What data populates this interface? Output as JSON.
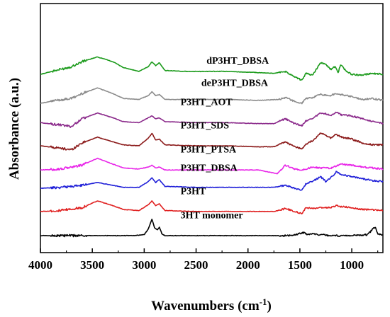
{
  "chart_data": {
    "type": "line",
    "title": "",
    "xlabel": "Wavenumbers (cm",
    "xlabel_sup": "-1",
    "xlabel_close": ")",
    "ylabel": "Absorbance (a.u.)",
    "xlim": [
      4000,
      700
    ],
    "x_reversed": true,
    "y_ticks_shown": false,
    "grid": false,
    "legend": "none",
    "x_ticks": [
      4000,
      3500,
      3000,
      2500,
      2000,
      1500,
      1000
    ],
    "x_tick_labels": [
      "4000",
      "3500",
      "3000",
      "2500",
      "2000",
      "1500",
      "1000"
    ],
    "series": [
      {
        "name": "dP3HT_DBSA",
        "color": "#1a9a1a",
        "offset": 8.0,
        "label_x": 2400,
        "points": [
          [
            4000,
            0.35
          ],
          [
            3850,
            0.55
          ],
          [
            3700,
            0.75
          ],
          [
            3600,
            1.0
          ],
          [
            3450,
            1.25
          ],
          [
            3300,
            1.0
          ],
          [
            3200,
            0.7
          ],
          [
            3050,
            0.5
          ],
          [
            2960,
            0.75
          ],
          [
            2925,
            1.0
          ],
          [
            2890,
            0.8
          ],
          [
            2855,
            0.95
          ],
          [
            2800,
            0.55
          ],
          [
            2600,
            0.5
          ],
          [
            2200,
            0.5
          ],
          [
            1950,
            0.45
          ],
          [
            1750,
            0.4
          ],
          [
            1640,
            0.5
          ],
          [
            1550,
            0.2
          ],
          [
            1480,
            0.05
          ],
          [
            1440,
            0.4
          ],
          [
            1380,
            0.3
          ],
          [
            1300,
            0.95
          ],
          [
            1250,
            0.85
          ],
          [
            1200,
            0.6
          ],
          [
            1160,
            0.75
          ],
          [
            1130,
            0.4
          ],
          [
            1110,
            0.85
          ],
          [
            1050,
            0.5
          ],
          [
            1000,
            0.35
          ],
          [
            900,
            0.3
          ],
          [
            800,
            0.4
          ],
          [
            700,
            0.35
          ]
        ]
      },
      {
        "name": "deP3HT_DBSA",
        "color": "#8c8c8c",
        "offset": 6.85,
        "label_x": 2450,
        "points": [
          [
            4000,
            0.0
          ],
          [
            3850,
            0.15
          ],
          [
            3700,
            0.25
          ],
          [
            3600,
            0.5
          ],
          [
            3450,
            0.8
          ],
          [
            3300,
            0.5
          ],
          [
            3200,
            0.25
          ],
          [
            3050,
            0.2
          ],
          [
            2960,
            0.4
          ],
          [
            2925,
            0.6
          ],
          [
            2890,
            0.4
          ],
          [
            2855,
            0.45
          ],
          [
            2800,
            0.2
          ],
          [
            2500,
            0.2
          ],
          [
            2200,
            0.2
          ],
          [
            1900,
            0.15
          ],
          [
            1700,
            0.2
          ],
          [
            1640,
            0.3
          ],
          [
            1550,
            0.1
          ],
          [
            1480,
            0.0
          ],
          [
            1440,
            0.25
          ],
          [
            1380,
            0.3
          ],
          [
            1300,
            0.45
          ],
          [
            1200,
            0.4
          ],
          [
            1160,
            0.5
          ],
          [
            1100,
            0.45
          ],
          [
            1000,
            0.35
          ],
          [
            900,
            0.2
          ],
          [
            800,
            0.25
          ],
          [
            700,
            0.15
          ]
        ]
      },
      {
        "name": "P3HT_AOT",
        "color": "#8b2a8b",
        "offset": 5.85,
        "label_x": 2650,
        "points": [
          [
            4000,
            0.0
          ],
          [
            3850,
            -0.1
          ],
          [
            3700,
            -0.2
          ],
          [
            3600,
            0.2
          ],
          [
            3450,
            0.5
          ],
          [
            3300,
            0.25
          ],
          [
            3200,
            0.05
          ],
          [
            3050,
            0.0
          ],
          [
            2960,
            0.25
          ],
          [
            2925,
            0.35
          ],
          [
            2890,
            0.2
          ],
          [
            2855,
            0.25
          ],
          [
            2800,
            0.05
          ],
          [
            2500,
            0.0
          ],
          [
            2200,
            0.0
          ],
          [
            1900,
            -0.05
          ],
          [
            1750,
            -0.05
          ],
          [
            1640,
            0.2
          ],
          [
            1550,
            -0.05
          ],
          [
            1480,
            -0.15
          ],
          [
            1440,
            0.1
          ],
          [
            1380,
            0.2
          ],
          [
            1300,
            0.5
          ],
          [
            1250,
            0.45
          ],
          [
            1200,
            0.35
          ],
          [
            1150,
            0.55
          ],
          [
            1100,
            0.4
          ],
          [
            1000,
            0.35
          ],
          [
            900,
            0.2
          ],
          [
            800,
            0.05
          ],
          [
            700,
            -0.05
          ]
        ]
      },
      {
        "name": "P3HT_SDS",
        "color": "#8b1a1a",
        "offset": 4.65,
        "label_x": 2650,
        "points": [
          [
            4000,
            0.0
          ],
          [
            3850,
            -0.1
          ],
          [
            3700,
            -0.2
          ],
          [
            3600,
            0.15
          ],
          [
            3450,
            0.45
          ],
          [
            3300,
            0.2
          ],
          [
            3200,
            0.05
          ],
          [
            3050,
            0.0
          ],
          [
            2960,
            0.4
          ],
          [
            2925,
            0.65
          ],
          [
            2890,
            0.3
          ],
          [
            2855,
            0.35
          ],
          [
            2800,
            0.05
          ],
          [
            2500,
            0.0
          ],
          [
            2200,
            0.0
          ],
          [
            1900,
            -0.05
          ],
          [
            1750,
            -0.05
          ],
          [
            1640,
            0.2
          ],
          [
            1550,
            -0.05
          ],
          [
            1480,
            -0.15
          ],
          [
            1440,
            0.1
          ],
          [
            1380,
            0.25
          ],
          [
            1300,
            0.65
          ],
          [
            1250,
            0.55
          ],
          [
            1200,
            0.4
          ],
          [
            1150,
            0.6
          ],
          [
            1100,
            0.45
          ],
          [
            1000,
            0.35
          ],
          [
            900,
            0.15
          ],
          [
            800,
            0.05
          ],
          [
            700,
            0.05
          ]
        ]
      },
      {
        "name": "P3HT_PTSA",
        "color": "#e825e8",
        "offset": 3.4,
        "label_x": 2650,
        "points": [
          [
            4000,
            0.0
          ],
          [
            3800,
            0.05
          ],
          [
            3600,
            0.25
          ],
          [
            3450,
            0.6
          ],
          [
            3300,
            0.3
          ],
          [
            3200,
            0.1
          ],
          [
            3050,
            0.05
          ],
          [
            2960,
            0.15
          ],
          [
            2925,
            0.25
          ],
          [
            2890,
            0.1
          ],
          [
            2855,
            0.15
          ],
          [
            2800,
            0.0
          ],
          [
            2500,
            0.0
          ],
          [
            2200,
            0.0
          ],
          [
            1900,
            0.0
          ],
          [
            1760,
            -0.15
          ],
          [
            1720,
            -0.2
          ],
          [
            1640,
            0.25
          ],
          [
            1550,
            0.05
          ],
          [
            1480,
            0.0
          ],
          [
            1440,
            0.05
          ],
          [
            1380,
            0.15
          ],
          [
            1300,
            0.1
          ],
          [
            1200,
            0.1
          ],
          [
            1150,
            0.2
          ],
          [
            1100,
            0.3
          ],
          [
            1000,
            0.25
          ],
          [
            900,
            0.15
          ],
          [
            800,
            0.1
          ],
          [
            700,
            0.05
          ]
        ]
      },
      {
        "name": "P3HT_DBSA",
        "color": "#2020d8",
        "offset": 2.45,
        "label_x": 2650,
        "points": [
          [
            4000,
            0.0
          ],
          [
            3800,
            0.05
          ],
          [
            3600,
            0.15
          ],
          [
            3450,
            0.3
          ],
          [
            3300,
            0.15
          ],
          [
            3200,
            0.05
          ],
          [
            3050,
            0.05
          ],
          [
            2960,
            0.35
          ],
          [
            2925,
            0.55
          ],
          [
            2890,
            0.3
          ],
          [
            2855,
            0.45
          ],
          [
            2800,
            0.1
          ],
          [
            2500,
            0.05
          ],
          [
            2200,
            0.05
          ],
          [
            1900,
            0.05
          ],
          [
            1750,
            0.05
          ],
          [
            1640,
            0.15
          ],
          [
            1550,
            0.0
          ],
          [
            1480,
            -0.1
          ],
          [
            1440,
            0.25
          ],
          [
            1380,
            0.35
          ],
          [
            1300,
            0.6
          ],
          [
            1250,
            0.35
          ],
          [
            1200,
            0.55
          ],
          [
            1150,
            0.85
          ],
          [
            1100,
            0.7
          ],
          [
            1000,
            0.6
          ],
          [
            900,
            0.5
          ],
          [
            800,
            0.4
          ],
          [
            700,
            0.35
          ]
        ]
      },
      {
        "name": "P3HT",
        "color": "#e02020",
        "offset": 1.25,
        "label_x": 2650,
        "points": [
          [
            4000,
            0.0
          ],
          [
            3800,
            0.05
          ],
          [
            3600,
            0.2
          ],
          [
            3450,
            0.55
          ],
          [
            3300,
            0.3
          ],
          [
            3200,
            0.1
          ],
          [
            3050,
            0.05
          ],
          [
            2960,
            0.35
          ],
          [
            2925,
            0.55
          ],
          [
            2890,
            0.3
          ],
          [
            2855,
            0.4
          ],
          [
            2800,
            0.05
          ],
          [
            2500,
            0.0
          ],
          [
            2200,
            0.0
          ],
          [
            1900,
            0.0
          ],
          [
            1750,
            0.0
          ],
          [
            1640,
            0.15
          ],
          [
            1550,
            0.0
          ],
          [
            1480,
            -0.1
          ],
          [
            1440,
            0.2
          ],
          [
            1380,
            0.15
          ],
          [
            1300,
            0.2
          ],
          [
            1200,
            0.2
          ],
          [
            1150,
            0.3
          ],
          [
            1100,
            0.25
          ],
          [
            1000,
            0.2
          ],
          [
            900,
            0.1
          ],
          [
            800,
            0.1
          ],
          [
            700,
            0.05
          ]
        ]
      },
      {
        "name": "3HT monomer",
        "color": "#000000",
        "offset": 0.0,
        "label_x": 2650,
        "points": [
          [
            4000,
            0.0
          ],
          [
            3500,
            0.0
          ],
          [
            3100,
            0.0
          ],
          [
            3000,
            0.05
          ],
          [
            2960,
            0.35
          ],
          [
            2925,
            0.85
          ],
          [
            2900,
            0.4
          ],
          [
            2870,
            0.3
          ],
          [
            2855,
            0.45
          ],
          [
            2830,
            0.1
          ],
          [
            2800,
            0.0
          ],
          [
            2500,
            0.0
          ],
          [
            2000,
            0.0
          ],
          [
            1600,
            0.0
          ],
          [
            1460,
            0.15
          ],
          [
            1420,
            0.05
          ],
          [
            1380,
            0.08
          ],
          [
            1200,
            0.0
          ],
          [
            1000,
            0.0
          ],
          [
            850,
            0.05
          ],
          [
            775,
            0.45
          ],
          [
            750,
            0.1
          ],
          [
            700,
            0.0
          ]
        ]
      }
    ]
  }
}
